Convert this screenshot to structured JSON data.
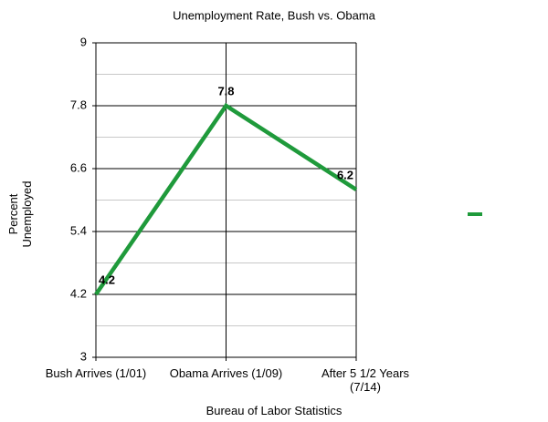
{
  "chart_data": {
    "type": "line",
    "title": "Unemployment Rate, Bush vs. Obama",
    "xlabel": "Bureau of Labor Statistics",
    "ylabel": "Percent Unemployed",
    "categories": [
      "Bush Arrives (1/01)",
      "Obama Arrives (1/09)",
      "After 5 1/2 Years (7/14)"
    ],
    "values": [
      4.2,
      7.8,
      6.2
    ],
    "color": "#1f9a3b",
    "ylim": [
      3,
      9
    ],
    "yticks": [
      3,
      4.2,
      5.4,
      6.6,
      7.8,
      9
    ],
    "grid": true
  }
}
